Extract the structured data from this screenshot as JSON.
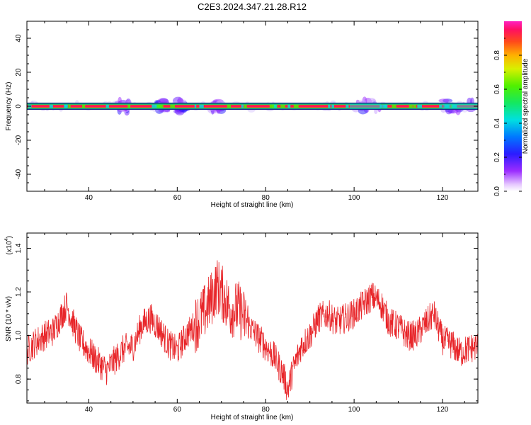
{
  "title": "C2E3.2024.347.21.28.R12",
  "colors": {
    "snr_line": "#e8262a",
    "freq_band_core": "#e8262a",
    "axis": "#000000"
  },
  "chart_data": [
    {
      "type": "heatmap",
      "title": "C2E3.2024.347.21.28.R12",
      "xlabel": "Height of straight line (km)",
      "ylabel": "Frequency (Hz)",
      "xlim": [
        26,
        128
      ],
      "ylim": [
        -50,
        50
      ],
      "x_ticks": [
        "40",
        "60",
        "80",
        "100",
        "120"
      ],
      "y_ticks": [
        "40",
        "20",
        "0",
        "-20",
        "-40"
      ],
      "grid": false,
      "description_values": {
        "band_center_hz": 0,
        "band_half_width_hz": 1.5,
        "spread_regions_km": [
          [
            46,
            50
          ],
          [
            55,
            58
          ],
          [
            60,
            62
          ],
          [
            68,
            70
          ],
          [
            99,
            106
          ],
          [
            120,
            128
          ]
        ]
      },
      "colorbar": {
        "label": "Normalized spectral amplitude",
        "range": [
          0,
          1
        ],
        "ticks": [
          "0.0",
          "0.2",
          "0.4",
          "0.6",
          "0.8"
        ]
      }
    },
    {
      "type": "line",
      "xlabel": "Height of straight line (km)",
      "ylabel": "SNR (10 * v/v)",
      "y_multiplier_label": "(x10",
      "y_multiplier_exp": "4",
      "y_multiplier_close": ")",
      "xlim": [
        26,
        128
      ],
      "ylim": [
        0.69,
        1.47
      ],
      "x_ticks": [
        "40",
        "60",
        "80",
        "100",
        "120"
      ],
      "y_ticks": [
        "0.8",
        "1.0",
        "1.2",
        "1.4"
      ],
      "grid": false,
      "series": [
        {
          "x": [
            26,
            28,
            30,
            32,
            34,
            35,
            36,
            38,
            40,
            42,
            44,
            46,
            48,
            50,
            52,
            54,
            56,
            58,
            60,
            62,
            64,
            66,
            68,
            69,
            70,
            72,
            74,
            76,
            78,
            80,
            82,
            84,
            85,
            86,
            88,
            90,
            92,
            94,
            96,
            98,
            100,
            102,
            104,
            106,
            108,
            110,
            112,
            114,
            116,
            118,
            120,
            122,
            124,
            126,
            128
          ],
          "values": [
            0.93,
            0.97,
            1.0,
            1.02,
            1.1,
            1.14,
            1.08,
            0.98,
            0.93,
            0.88,
            0.84,
            0.89,
            0.94,
            0.95,
            1.05,
            1.08,
            1.03,
            0.96,
            0.93,
            1.0,
            1.05,
            1.1,
            1.18,
            1.23,
            1.2,
            1.12,
            1.12,
            1.05,
            1.0,
            0.95,
            0.9,
            0.82,
            0.75,
            0.83,
            0.95,
            1.0,
            1.08,
            1.1,
            1.06,
            1.08,
            1.1,
            1.14,
            1.18,
            1.15,
            1.06,
            1.04,
            1.0,
            1.0,
            1.05,
            1.1,
            0.98,
            0.96,
            0.92,
            0.94,
            0.95
          ],
          "noise": 0.07
        }
      ]
    }
  ]
}
